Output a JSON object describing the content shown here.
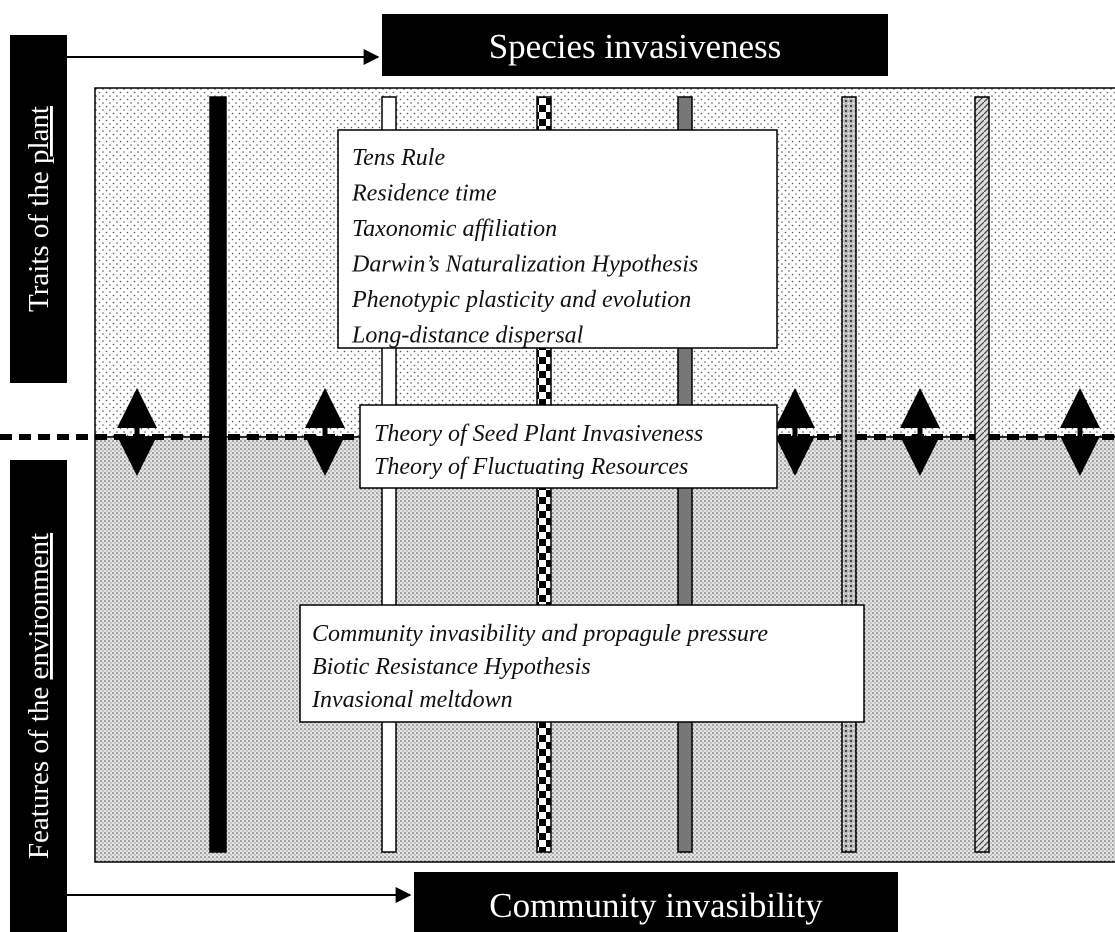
{
  "top_label": "Species invasiveness",
  "bottom_label": "Community invasibility",
  "side_labels": {
    "plant": {
      "prefix": "Traits of the ",
      "underlined": "plant"
    },
    "environment": {
      "prefix": "Features of the ",
      "underlined": "environment"
    }
  },
  "boxes": [
    {
      "lines": [
        "Tens Rule",
        "Residence time",
        "Taxonomic affiliation",
        "Darwin’s Naturalization Hypothesis",
        "Phenotypic plasticity and evolution",
        "Long-distance dispersal"
      ]
    },
    {
      "lines": [
        "Theory of Seed Plant Invasiveness",
        "Theory of Fluctuating Resources"
      ]
    },
    {
      "lines": [
        "Community invasibility and propagule pressure",
        "Biotic Resistance Hypothesis",
        "Invasional meltdown"
      ]
    }
  ]
}
